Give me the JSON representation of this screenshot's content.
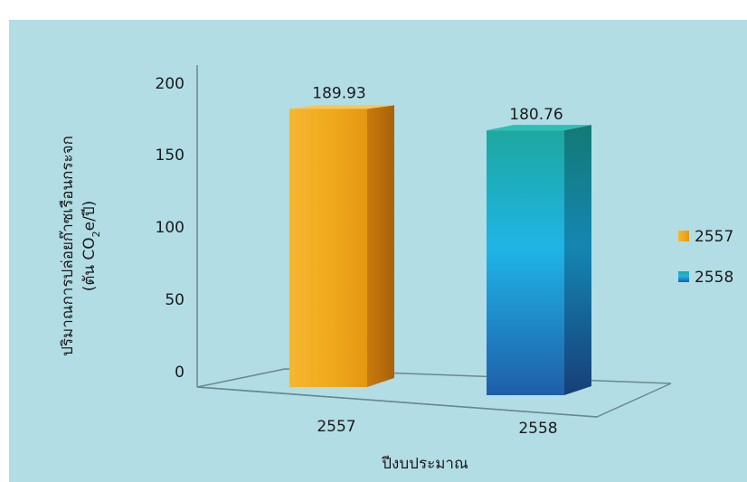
{
  "colors": {
    "panel_background": "#b2dde5",
    "bar_2557": "#f0a81c",
    "bar_2558_top": "#1ea8a0",
    "bar_2558_middle": "#1fb4e6",
    "bar_2558_bottom": "#1f5ea8",
    "axis": "#6a8890"
  },
  "chart_data": {
    "type": "bar",
    "style": "3d-column",
    "categories": [
      "2557",
      "2558"
    ],
    "series": [
      {
        "name": "2557",
        "values": [
          189.93,
          null
        ]
      },
      {
        "name": "2558",
        "values": [
          null,
          180.76
        ]
      }
    ],
    "value_labels": [
      "189.93",
      "180.76"
    ],
    "xlabel": "ปีงบประมาณ",
    "ylabel_line1": "ปริมาณการปล่อยก๊าซเรือนกระจก",
    "ylabel_line2_prefix": "(ตัน CO",
    "ylabel_line2_subscript": "2",
    "ylabel_line2_suffix": "e/ปี)",
    "ylim": [
      0,
      200
    ],
    "yticks": [
      "0",
      "50",
      "100",
      "150",
      "200"
    ],
    "grid": false,
    "legend_position": "right",
    "legend": [
      {
        "label": "2557",
        "icon": "orange-square"
      },
      {
        "label": "2558",
        "icon": "blue-square"
      }
    ]
  }
}
